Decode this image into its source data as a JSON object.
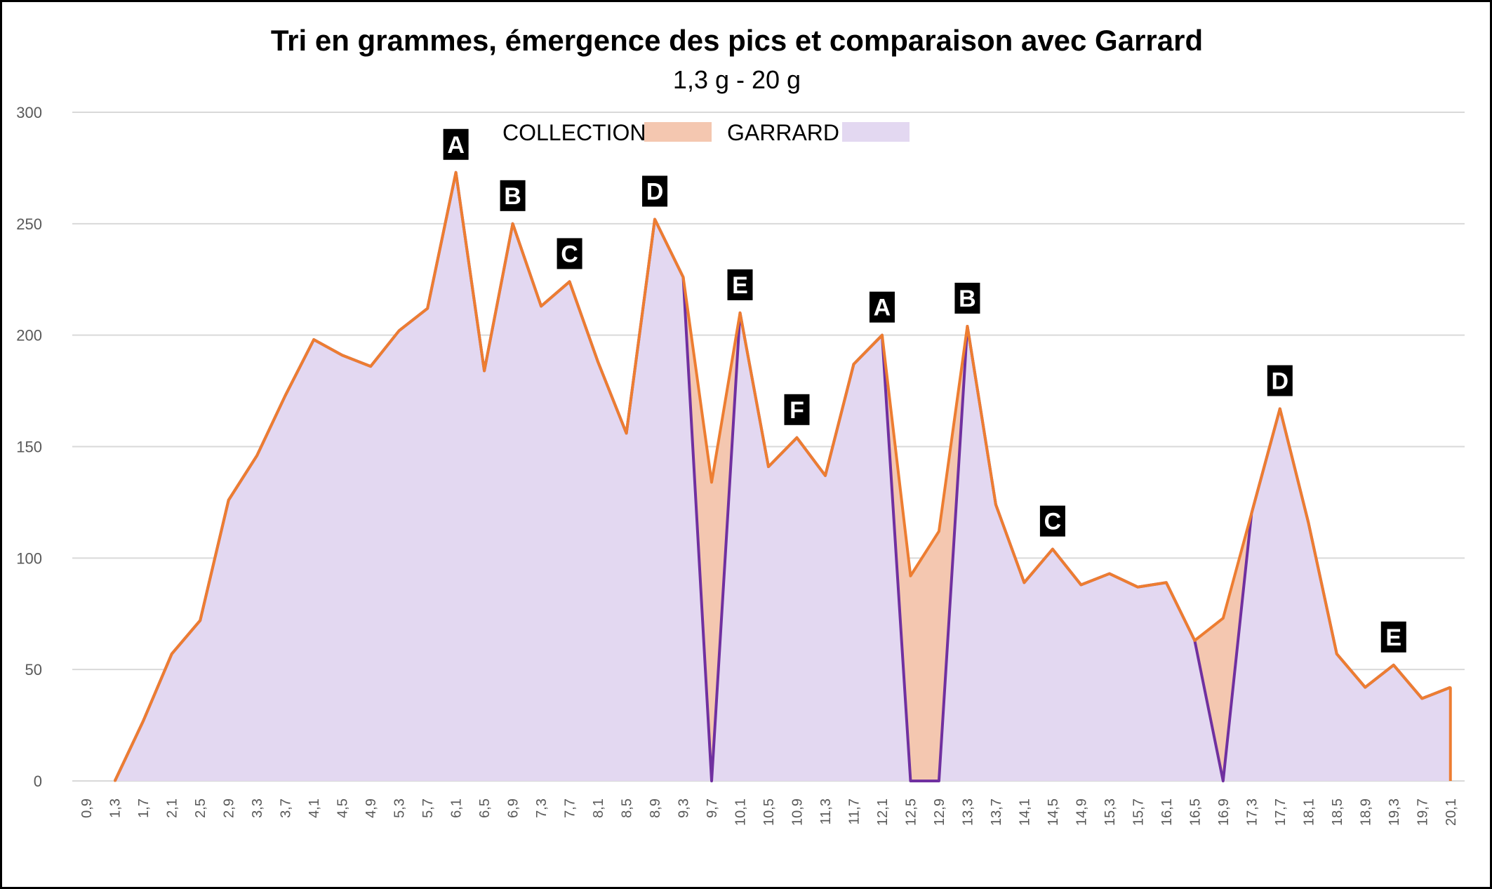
{
  "chart_data": {
    "type": "area",
    "title": "Tri en grammes, émergence des pics et comparaison avec Garrard",
    "subtitle": "1,3 g - 20 g",
    "ylim": [
      0,
      300
    ],
    "yticks": [
      0,
      50,
      100,
      150,
      200,
      250,
      300
    ],
    "grid": true,
    "legend_position": "top",
    "categories": [
      "0,9",
      "1,3",
      "1,7",
      "2,1",
      "2,5",
      "2,9",
      "3,3",
      "3,7",
      "4,1",
      "4,5",
      "4,9",
      "5,3",
      "5,7",
      "6,1",
      "6,5",
      "6,9",
      "7,3",
      "7,7",
      "8,1",
      "8,5",
      "8,9",
      "9,3",
      "9,7",
      "10,1",
      "10,5",
      "10,9",
      "11,3",
      "11,7",
      "12,1",
      "12,5",
      "12,9",
      "13,3",
      "13,7",
      "14,1",
      "14,5",
      "14,9",
      "15,3",
      "15,7",
      "16,1",
      "16,5",
      "16,9",
      "17,3",
      "17,7",
      "18,1",
      "18,5",
      "18,9",
      "19,3",
      "19,7",
      "20,1"
    ],
    "series": [
      {
        "name": "COLLECTION",
        "color": "#ED7D31",
        "fill": "#F4C7B0",
        "values": [
          null,
          0,
          27,
          57,
          72,
          126,
          146,
          173,
          198,
          191,
          186,
          202,
          212,
          273,
          184,
          250,
          213,
          224,
          188,
          156,
          252,
          226,
          134,
          210,
          141,
          154,
          137,
          187,
          200,
          92,
          112,
          204,
          124,
          89,
          104,
          88,
          93,
          87,
          89,
          63,
          73,
          120,
          167,
          116,
          57,
          42,
          52,
          37,
          42
        ]
      },
      {
        "name": "GARRARD",
        "color": "#7030A0",
        "fill": "#E3D8F1",
        "values": [
          null,
          0,
          27,
          57,
          72,
          126,
          146,
          173,
          198,
          191,
          186,
          202,
          212,
          273,
          184,
          250,
          213,
          224,
          188,
          156,
          252,
          226,
          0,
          210,
          141,
          154,
          137,
          187,
          200,
          0,
          0,
          204,
          124,
          89,
          104,
          88,
          93,
          87,
          89,
          63,
          0,
          120,
          167,
          116,
          57,
          42,
          52,
          37,
          42
        ]
      }
    ],
    "annotations": [
      {
        "label": "A",
        "x": "6,1",
        "y": 273
      },
      {
        "label": "B",
        "x": "6,9",
        "y": 250
      },
      {
        "label": "C",
        "x": "7,7",
        "y": 224
      },
      {
        "label": "D",
        "x": "8,9",
        "y": 252
      },
      {
        "label": "E",
        "x": "10,1",
        "y": 210
      },
      {
        "label": "F",
        "x": "10,9",
        "y": 154
      },
      {
        "label": "A",
        "x": "12,1",
        "y": 200
      },
      {
        "label": "B",
        "x": "13,3",
        "y": 204
      },
      {
        "label": "D",
        "x": "17,7",
        "y": 167
      },
      {
        "label": "C",
        "x": "14,5",
        "y": 104
      },
      {
        "label": "E",
        "x": "19,3",
        "y": 52
      }
    ]
  }
}
